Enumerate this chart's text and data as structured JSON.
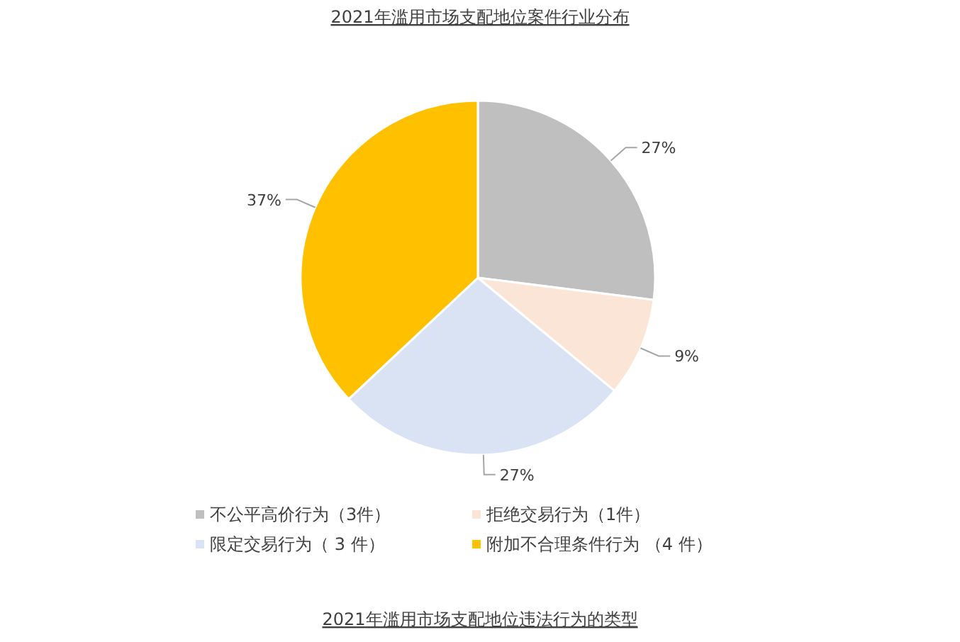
{
  "chart_data": {
    "type": "pie",
    "title": "2021年滥用市场支配地位案件行业分布",
    "categories": [
      "不公平高价行为（3件）",
      "拒绝交易行为（1件）",
      "限定交易行为（ 3 件）",
      "附加不合理条件行为 （4 件）"
    ],
    "values": [
      27,
      9,
      27,
      37
    ],
    "colors": [
      "#bfbfbf",
      "#fbe5d6",
      "#dae3f3",
      "#ffc000"
    ],
    "value_labels": [
      "27%",
      "9%",
      "27%",
      "37%"
    ],
    "legend": "bottom",
    "annotations": [
      "2021年滥用市场支配地位违法行为的类型"
    ]
  }
}
